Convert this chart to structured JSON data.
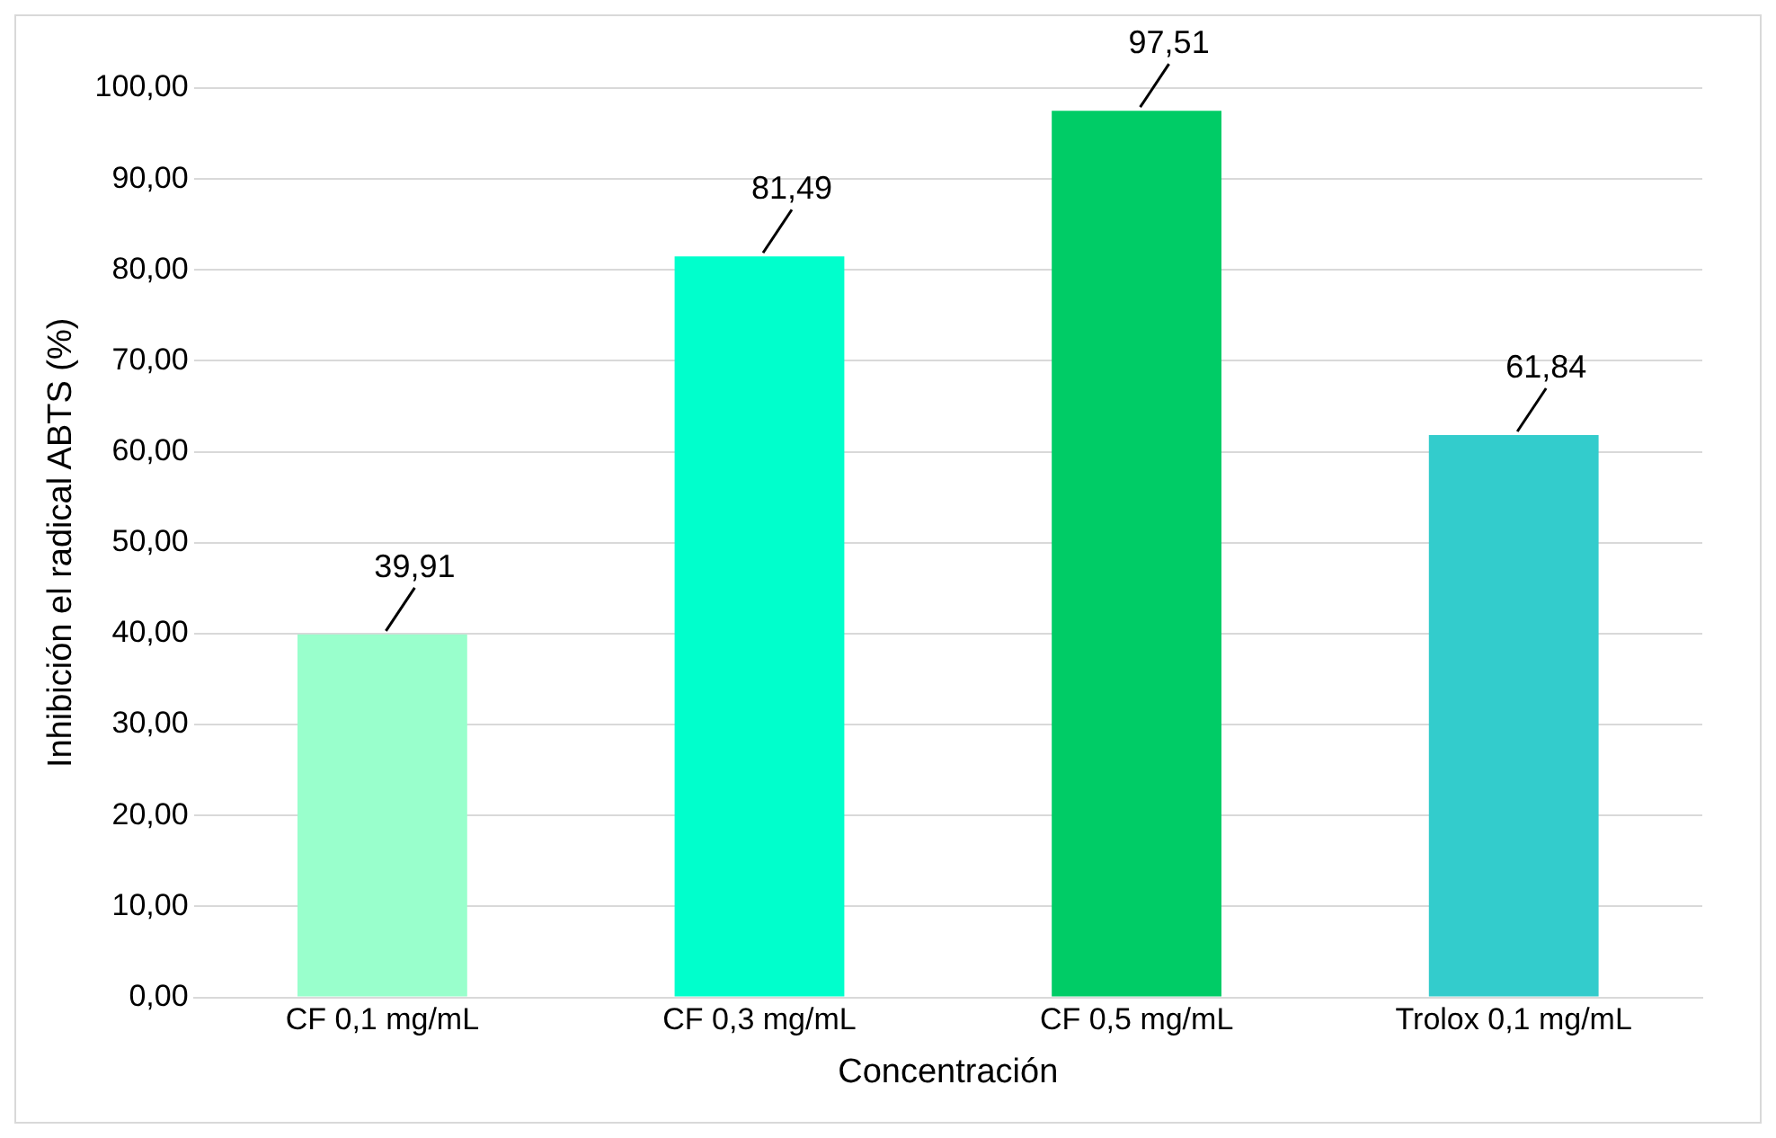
{
  "chart_data": {
    "type": "bar",
    "xlabel": "Concentración",
    "ylabel": "Inhibición el radical ABTS (%)",
    "categories": [
      "CF 0,1 mg/mL",
      "CF 0,3 mg/mL",
      "CF 0,5 mg/mL",
      "Trolox 0,1 mg/mL"
    ],
    "values": [
      39.91,
      81.49,
      97.51,
      61.84
    ],
    "colors": [
      "#99ffcc",
      "#00ffcc",
      "#00cc66",
      "#33cccc"
    ],
    "value_labels": [
      "39,91",
      "81,49",
      "97,51",
      "61,84"
    ],
    "ylim": [
      0,
      100
    ],
    "yticks": [
      {
        "value": 0,
        "label": "0,00"
      },
      {
        "value": 10,
        "label": "10,00"
      },
      {
        "value": 20,
        "label": "20,00"
      },
      {
        "value": 30,
        "label": "30,00"
      },
      {
        "value": 40,
        "label": "40,00"
      },
      {
        "value": 50,
        "label": "50,00"
      },
      {
        "value": 60,
        "label": "60,00"
      },
      {
        "value": 70,
        "label": "70,00"
      },
      {
        "value": 80,
        "label": "80,00"
      },
      {
        "value": 90,
        "label": "90,00"
      },
      {
        "value": 100,
        "label": "100,00"
      }
    ],
    "grid": "y",
    "legend": false
  }
}
